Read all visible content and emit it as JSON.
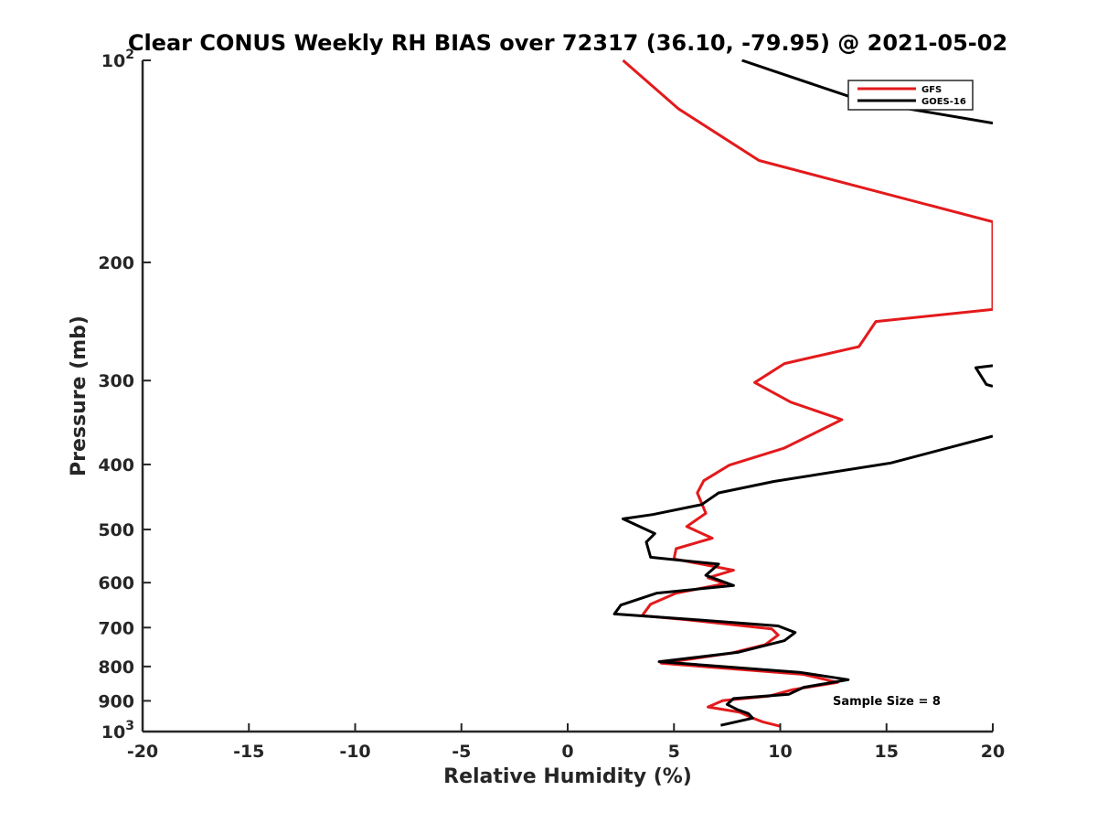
{
  "chart_data": {
    "type": "line",
    "title": "Clear CONUS Weekly RH BIAS over 72317 (36.10, -79.95) @ 2021-05-02",
    "xlabel": "Relative Humidity (%)",
    "ylabel": "Pressure (mb)",
    "xlim": [
      -20,
      20
    ],
    "ylim": [
      100,
      1000
    ],
    "yscale": "log",
    "y_reversed": true,
    "grid": false,
    "legend_position": "top-right",
    "x_ticks": [
      "-20",
      "-15",
      "-10",
      "-5",
      "0",
      "5",
      "10",
      "15",
      "20"
    ],
    "y_ticks": [
      {
        "value": 100,
        "base": "10",
        "exp": "2"
      },
      {
        "value": 200,
        "label": "200"
      },
      {
        "value": 300,
        "label": "300"
      },
      {
        "value": 400,
        "label": "400"
      },
      {
        "value": 500,
        "label": "500"
      },
      {
        "value": 600,
        "label": "600"
      },
      {
        "value": 700,
        "label": "700"
      },
      {
        "value": 800,
        "label": "800"
      },
      {
        "value": 900,
        "label": "900"
      },
      {
        "value": 1000,
        "base": "10",
        "exp": "3"
      }
    ],
    "annotation": "Sample Size = 8",
    "series": [
      {
        "name": "GFS",
        "color": "#e31a1c",
        "points": [
          [
            2.6,
            100
          ],
          [
            5.2,
            118
          ],
          [
            9.0,
            141
          ],
          [
            20.0,
            174
          ],
          [
            20.0,
            235
          ],
          [
            14.5,
            245
          ],
          [
            13.7,
            267
          ],
          [
            10.2,
            283
          ],
          [
            8.8,
            302
          ],
          [
            10.5,
            323
          ],
          [
            12.9,
            343
          ],
          [
            10.2,
            378
          ],
          [
            7.6,
            401
          ],
          [
            6.4,
            423
          ],
          [
            6.1,
            441
          ],
          [
            6.5,
            473
          ],
          [
            5.6,
            495
          ],
          [
            6.8,
            515
          ],
          [
            5.1,
            534
          ],
          [
            5.0,
            553
          ],
          [
            7.8,
            575
          ],
          [
            6.6,
            590
          ],
          [
            7.4,
            602
          ],
          [
            5.1,
            622
          ],
          [
            3.9,
            646
          ],
          [
            3.5,
            672
          ],
          [
            5.5,
            681
          ],
          [
            9.6,
            703
          ],
          [
            9.9,
            718
          ],
          [
            9.3,
            742
          ],
          [
            7.7,
            764
          ],
          [
            4.4,
            791
          ],
          [
            11.1,
            822
          ],
          [
            12.7,
            845
          ],
          [
            10.6,
            866
          ],
          [
            9.5,
            885
          ],
          [
            7.3,
            899
          ],
          [
            6.6,
            919
          ],
          [
            8.1,
            936
          ],
          [
            8.6,
            952
          ],
          [
            9.2,
            968
          ],
          [
            10.0,
            982
          ]
        ]
      },
      {
        "name": "GOES-16",
        "color": "#000000",
        "points": [
          [
            8.2,
            100
          ],
          [
            13.9,
            115
          ],
          [
            20.0,
            124
          ],
          [
            null,
            null
          ],
          [
            20.0,
            285
          ],
          [
            19.2,
            287
          ],
          [
            19.7,
            304
          ],
          [
            20.0,
            306
          ],
          [
            null,
            null
          ],
          [
            20.0,
            363
          ],
          [
            15.2,
            398
          ],
          [
            9.7,
            424
          ],
          [
            7.1,
            441
          ],
          [
            6.3,
            459
          ],
          [
            4.0,
            475
          ],
          [
            2.6,
            482
          ],
          [
            4.1,
            507
          ],
          [
            3.7,
            522
          ],
          [
            3.9,
            550
          ],
          [
            7.1,
            563
          ],
          [
            6.5,
            585
          ],
          [
            7.8,
            606
          ],
          [
            4.2,
            622
          ],
          [
            2.5,
            648
          ],
          [
            2.2,
            668
          ],
          [
            5.9,
            681
          ],
          [
            9.9,
            696
          ],
          [
            10.7,
            712
          ],
          [
            10.2,
            732
          ],
          [
            8.0,
            762
          ],
          [
            4.3,
            787
          ],
          [
            10.9,
            816
          ],
          [
            13.2,
            837
          ],
          [
            11.1,
            859
          ],
          [
            10.4,
            880
          ],
          [
            7.8,
            893
          ],
          [
            7.5,
            911
          ],
          [
            8.0,
            928
          ],
          [
            8.5,
            940
          ],
          [
            8.7,
            955
          ],
          [
            7.2,
            979
          ]
        ]
      }
    ]
  }
}
